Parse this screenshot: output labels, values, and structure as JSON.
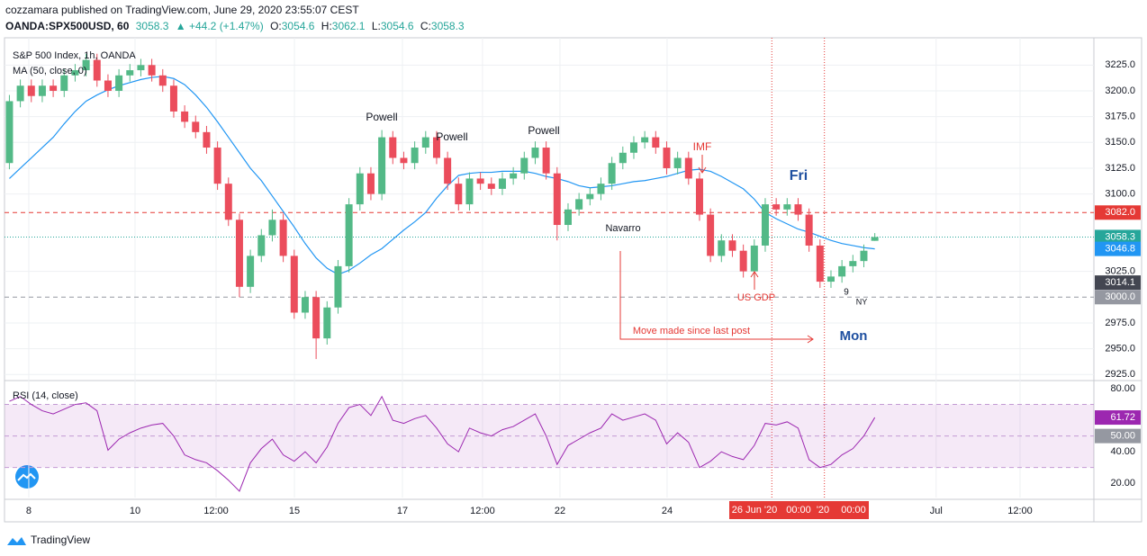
{
  "header": {
    "published": "cozzamara published on TradingView.com, June 29, 2020 23:55:07 CEST",
    "symbol": "OANDA:SPX500USD, 60",
    "last": "3058.3",
    "change": "▲ +44.2 (+1.47%)",
    "o_label": "O:",
    "o": "3054.6",
    "h_label": "H:",
    "h": "3062.1",
    "l_label": "L:",
    "l": "3054.6",
    "c_label": "C:",
    "c": "3058.3"
  },
  "footer": "TradingView",
  "chart_data": [
    {
      "type": "candlestick",
      "title": "S&P 500 Index, 1h, OANDA",
      "up_color": "#53b987",
      "down_color": "#eb4d5c",
      "xlim": [
        -0.2,
        99
      ],
      "ylim": [
        2920,
        3234
      ],
      "xticks": [
        {
          "value": 1.77,
          "label": "8"
        },
        {
          "value": 11.47,
          "label": "10"
        },
        {
          "value": 18.87,
          "label": "12:00"
        },
        {
          "value": 26.02,
          "label": "15"
        },
        {
          "value": 35.88,
          "label": "17"
        },
        {
          "value": 43.19,
          "label": "12:00"
        },
        {
          "value": 50.26,
          "label": "22"
        },
        {
          "value": 60.04,
          "label": "24"
        },
        {
          "value": 84.6,
          "label": "Jul"
        },
        {
          "value": 92.26,
          "label": "12:00"
        }
      ],
      "yticks": [
        {
          "value": 3225,
          "label": "3225.0"
        },
        {
          "value": 3200,
          "label": "3200.0"
        },
        {
          "value": 3175,
          "label": "3175.0"
        },
        {
          "value": 3150,
          "label": "3150.0"
        },
        {
          "value": 3125,
          "label": "3125.0"
        },
        {
          "value": 3100,
          "label": "3100.0"
        },
        {
          "value": 3025,
          "label": "3025.0"
        },
        {
          "value": 2975,
          "label": "2975.0"
        },
        {
          "value": 2950,
          "label": "2950.0"
        },
        {
          "value": 2925,
          "label": "2925.0"
        }
      ],
      "grid": true,
      "open": [
        3130,
        3190,
        3205,
        3195,
        3205,
        3200,
        3215,
        3220,
        3230,
        3210,
        3200,
        3215,
        3220,
        3225,
        3215,
        3205,
        3180,
        3170,
        3160,
        3145,
        3110,
        3075,
        3010,
        3040,
        3060,
        3075,
        3040,
        2985,
        3000,
        2960,
        2990,
        3030,
        3090,
        3120,
        3100,
        3155,
        3135,
        3130,
        3145,
        3155,
        3135,
        3110,
        3090,
        3115,
        3110,
        3105,
        3115,
        3120,
        3135,
        3145,
        3120,
        3070,
        3085,
        3095,
        3100,
        3110,
        3130,
        3140,
        3150,
        3155,
        3145,
        3125,
        3135,
        3115,
        3080,
        3040,
        3055,
        3045,
        3025,
        3050,
        3090,
        3085,
        3090,
        3080,
        3050,
        3015,
        3020,
        3030,
        3035,
        3054.6
      ],
      "high": [
        3196,
        3211,
        3211,
        3211,
        3211,
        3221,
        3226,
        3236,
        3236,
        3216,
        3221,
        3226,
        3231,
        3231,
        3221,
        3211,
        3186,
        3176,
        3166,
        3151,
        3116,
        3081,
        3046,
        3066,
        3085,
        3081,
        3046,
        3006,
        3006,
        2996,
        3036,
        3096,
        3126,
        3126,
        3162,
        3161,
        3141,
        3151,
        3161,
        3161,
        3141,
        3116,
        3121,
        3121,
        3116,
        3121,
        3126,
        3141,
        3151,
        3151,
        3126,
        3091,
        3101,
        3106,
        3116,
        3136,
        3146,
        3156,
        3161,
        3161,
        3151,
        3141,
        3141,
        3121,
        3086,
        3061,
        3061,
        3051,
        3056,
        3096,
        3096,
        3096,
        3096,
        3086,
        3056,
        3026,
        3036,
        3041,
        3051,
        3062.1
      ],
      "low": [
        3124,
        3184,
        3189,
        3189,
        3194,
        3194,
        3209,
        3214,
        3204,
        3194,
        3194,
        3209,
        3214,
        3209,
        3199,
        3174,
        3164,
        3154,
        3139,
        3104,
        3069,
        3000,
        3004,
        3034,
        3054,
        3034,
        2979,
        2979,
        2940,
        2954,
        2984,
        3024,
        3084,
        3094,
        3094,
        3129,
        3124,
        3124,
        3139,
        3129,
        3104,
        3084,
        3084,
        3104,
        3099,
        3099,
        3109,
        3114,
        3129,
        3114,
        3055,
        3064,
        3079,
        3089,
        3094,
        3104,
        3124,
        3134,
        3144,
        3139,
        3119,
        3119,
        3109,
        3074,
        3034,
        3034,
        3039,
        3019,
        3019,
        3044,
        3079,
        3079,
        3074,
        3044,
        3009,
        3009,
        3014,
        3024,
        3029,
        3054.6
      ],
      "close": [
        3190,
        3205,
        3195,
        3205,
        3200,
        3215,
        3220,
        3230,
        3210,
        3200,
        3215,
        3220,
        3225,
        3215,
        3205,
        3180,
        3170,
        3160,
        3145,
        3110,
        3075,
        3010,
        3040,
        3060,
        3075,
        3040,
        2985,
        3000,
        2960,
        2990,
        3030,
        3090,
        3120,
        3100,
        3155,
        3135,
        3130,
        3145,
        3155,
        3135,
        3110,
        3090,
        3115,
        3110,
        3105,
        3115,
        3120,
        3135,
        3145,
        3120,
        3070,
        3085,
        3095,
        3100,
        3110,
        3130,
        3140,
        3150,
        3155,
        3145,
        3125,
        3135,
        3115,
        3080,
        3040,
        3055,
        3045,
        3025,
        3050,
        3090,
        3085,
        3090,
        3080,
        3050,
        3015,
        3020,
        3030,
        3035,
        3045,
        3058.3
      ],
      "series": [
        {
          "name": "MA (50, close, 0)",
          "color": "#2196f3",
          "values": [
            3115,
            3125,
            3135,
            3145,
            3155,
            3168,
            3180,
            3190,
            3196,
            3201,
            3205,
            3208,
            3211,
            3213,
            3214,
            3212,
            3206,
            3196,
            3184,
            3170,
            3155,
            3140,
            3125,
            3113,
            3098,
            3083,
            3068,
            3052,
            3038,
            3028,
            3022,
            3026,
            3033,
            3041,
            3047,
            3056,
            3065,
            3073,
            3082,
            3096,
            3108,
            3118,
            3120,
            3121,
            3121,
            3122,
            3122,
            3122,
            3120,
            3117,
            3115,
            3112,
            3108,
            3106,
            3107,
            3108,
            3110,
            3112,
            3113,
            3115,
            3117,
            3120,
            3123,
            3124,
            3122,
            3117,
            3111,
            3105,
            3095,
            3082,
            3076,
            3071,
            3066,
            3063,
            3059,
            3055,
            3052,
            3050,
            3048,
            3046.8
          ]
        }
      ],
      "hlines": [
        {
          "value": 3082,
          "color": "#e53935",
          "style": "dashed"
        },
        {
          "value": 3058.3,
          "color": "#26a69a",
          "style": "dotted"
        },
        {
          "value": 3000,
          "color": "#9598a1",
          "style": "dashed"
        }
      ],
      "vlines": [
        69.6,
        74.4
      ],
      "price_tags": [
        {
          "value": 3082,
          "label": "3082.0",
          "color": "#e53935"
        },
        {
          "value": 3058.3,
          "label": "3058.3",
          "color": "#26a69a"
        },
        {
          "value": 3046.8,
          "label": "3046.8",
          "color": "#2196f3"
        },
        {
          "value": 3014.1,
          "label": "3014.1",
          "color": "#434651"
        },
        {
          "value": 3000,
          "label": "3000.0",
          "color": "#9598a1"
        }
      ],
      "time_markers": [
        "26 Jun '20",
        "00:00",
        "'20",
        "00:00"
      ],
      "annotations": [
        "Powell",
        "Powell",
        "Powell",
        "Navarro",
        "IMF",
        "US GDP",
        "Fri",
        "Mon",
        "Move made since last post",
        "9",
        "NY"
      ]
    },
    {
      "type": "line",
      "title": "RSI (14, close)",
      "xlim": [
        -0.2,
        99
      ],
      "ylim": [
        11,
        84
      ],
      "yticks": [
        {
          "value": 80,
          "label": "80.00"
        },
        {
          "value": 40,
          "label": "40.00"
        },
        {
          "value": 20,
          "label": "20.00"
        }
      ],
      "band": [
        30,
        70
      ],
      "midline": 50,
      "series": [
        {
          "name": "RSI",
          "color": "#9c27b0",
          "values": [
            72,
            75,
            70,
            66,
            64,
            67,
            70,
            71,
            66,
            41,
            48,
            52,
            55,
            57,
            58,
            50,
            38,
            35,
            33,
            28,
            22,
            15,
            33,
            42,
            48,
            38,
            34,
            40,
            33,
            43,
            58,
            68,
            70,
            63,
            75,
            60,
            58,
            61,
            63,
            55,
            45,
            40,
            55,
            52,
            50,
            54,
            56,
            60,
            64,
            50,
            32,
            44,
            48,
            52,
            55,
            64,
            60,
            62,
            64,
            60,
            45,
            52,
            46,
            30,
            34,
            40,
            37,
            35,
            44,
            58,
            57,
            59,
            55,
            35,
            30,
            32,
            38,
            42,
            50,
            61.72
          ]
        }
      ],
      "price_tags": [
        {
          "value": 61.72,
          "label": "61.72",
          "color": "#9c27b0"
        },
        {
          "value": 50,
          "label": "50.00",
          "color": "#9598a1"
        }
      ]
    }
  ]
}
